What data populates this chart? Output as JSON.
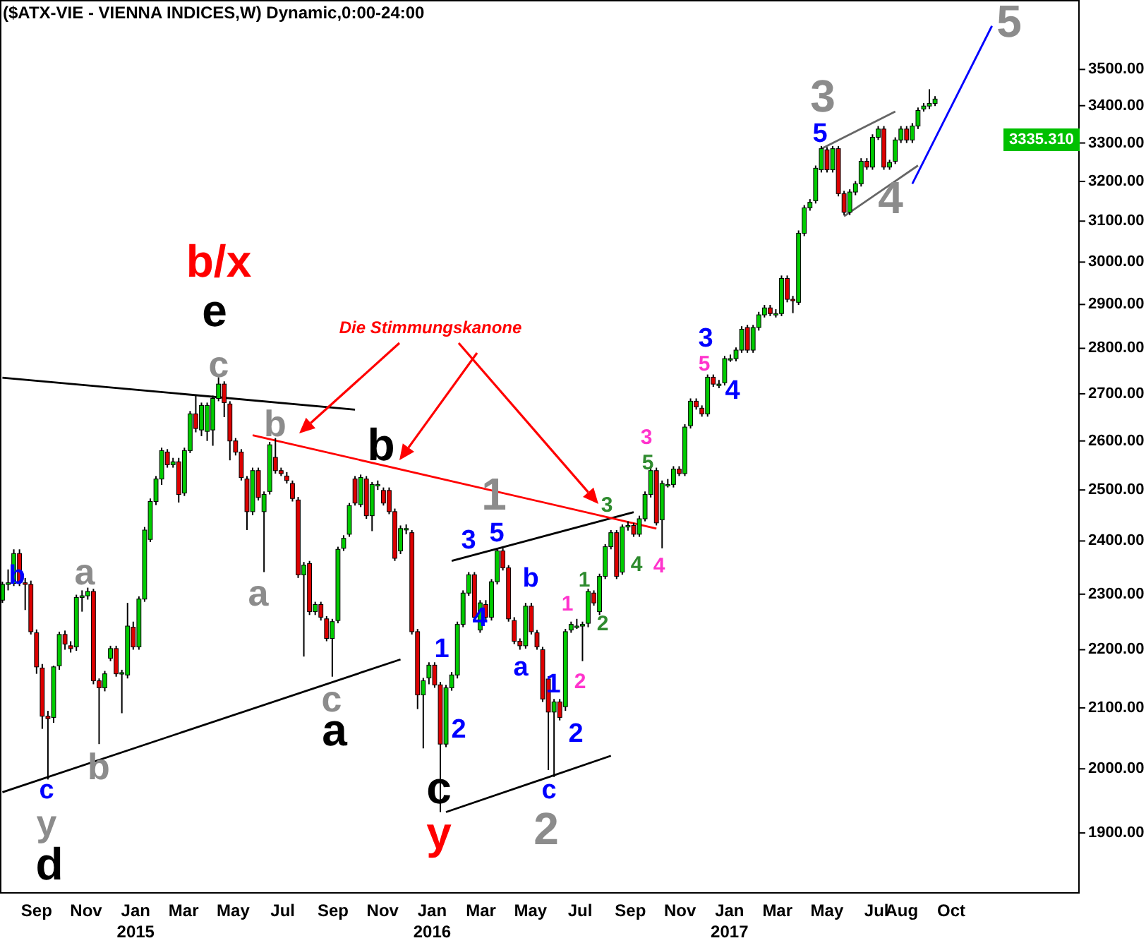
{
  "chart_data": {
    "type": "candlestick",
    "title": "($ATX-VIE - VIENNA INDICES,W) Dynamic,0:00-24:00",
    "log": true,
    "xlim": [
      "2014-07-18",
      "2018-03-08"
    ],
    "ylim": [
      1810,
      3700
    ],
    "xticks": [
      {
        "value": "2014-09-01",
        "label": "Sep"
      },
      {
        "value": "2014-11-01",
        "label": "Nov"
      },
      {
        "value": "2015-01-01",
        "label": "Jan\n2015"
      },
      {
        "value": "2015-03-01",
        "label": "Mar"
      },
      {
        "value": "2015-05-01",
        "label": "May"
      },
      {
        "value": "2015-07-01",
        "label": "Jul"
      },
      {
        "value": "2015-09-01",
        "label": "Sep"
      },
      {
        "value": "2015-11-01",
        "label": "Nov"
      },
      {
        "value": "2016-01-01",
        "label": "Jan\n2016"
      },
      {
        "value": "2016-03-01",
        "label": "Mar"
      },
      {
        "value": "2016-05-01",
        "label": "May"
      },
      {
        "value": "2016-07-01",
        "label": "Jul"
      },
      {
        "value": "2016-09-01",
        "label": "Sep"
      },
      {
        "value": "2016-11-01",
        "label": "Nov"
      },
      {
        "value": "2017-01-01",
        "label": "Jan\n2017"
      },
      {
        "value": "2017-03-01",
        "label": "Mar"
      },
      {
        "value": "2017-05-01",
        "label": "May"
      },
      {
        "value": "2017-07-01",
        "label": "Jul"
      },
      {
        "value": "2017-08-01",
        "label": "Aug"
      },
      {
        "value": "2017-10-01",
        "label": "Oct"
      }
    ],
    "yticks": [
      {
        "value": 1900,
        "label": "1900.00"
      },
      {
        "value": 2000,
        "label": "2000.00"
      },
      {
        "value": 2100,
        "label": "2100.00"
      },
      {
        "value": 2200,
        "label": "2200.00"
      },
      {
        "value": 2300,
        "label": "2300.00"
      },
      {
        "value": 2400,
        "label": "2400.00"
      },
      {
        "value": 2500,
        "label": "2500.00"
      },
      {
        "value": 2600,
        "label": "2600.00"
      },
      {
        "value": 2700,
        "label": "2700.00"
      },
      {
        "value": 2800,
        "label": "2800.00"
      },
      {
        "value": 2900,
        "label": "2900.00"
      },
      {
        "value": 3000,
        "label": "3000.00"
      },
      {
        "value": 3100,
        "label": "3100.00"
      },
      {
        "value": 3200,
        "label": "3200.00"
      },
      {
        "value": 3300,
        "label": "3300.00"
      },
      {
        "value": 3400,
        "label": "3400.00"
      },
      {
        "value": 3500,
        "label": "3500.00"
      }
    ],
    "colors": [
      "#00cc00",
      "#00cc00",
      "#00cc00",
      "#dd0000",
      "#dd0000",
      "#dd0000",
      "#dd0000",
      "#dd0000",
      "#dd0000",
      "#00cc00",
      "#00cc00",
      "#dd0000",
      "#dd0000",
      "#00cc00",
      "#00cc00",
      "#00cc00",
      "#dd0000",
      "#dd0000",
      "#00cc00",
      "#00cc00",
      "#dd0000",
      "#00cc00",
      "#00cc00",
      "#dd0000",
      "#00cc00",
      "#00cc00",
      "#00cc00",
      "#00cc00",
      "#00cc00",
      "#dd0000",
      "#00cc00",
      "#dd0000",
      "#00cc00",
      "#00cc00",
      "#dd0000",
      "#00cc00",
      "#00cc00",
      "#00cc00",
      "#00cc00",
      "#dd0000",
      "#dd0000",
      "#dd0000",
      "#dd0000",
      "#dd0000",
      "#00cc00",
      "#dd0000",
      "#00cc00",
      "#00cc00",
      "#dd0000",
      "#dd0000",
      "#dd0000",
      "#dd0000",
      "#dd0000",
      "#00cc00",
      "#dd0000",
      "#00cc00",
      "#dd0000",
      "#dd0000",
      "#00cc00",
      "#00cc00",
      "#00cc00",
      "#00cc00",
      "#dd0000",
      "#00cc00",
      "#dd0000",
      "#00cc00",
      "#00cc00",
      "#dd0000",
      "#dd0000",
      "#dd0000",
      "#00cc00",
      "#00cc00",
      "#dd0000",
      "#dd0000",
      "#00cc00",
      "#00cc00",
      "#dd0000",
      "#dd0000",
      "#00cc00",
      "#00cc00",
      "#00cc00",
      "#00cc00",
      "#00cc00",
      "#dd0000",
      "#00cc00",
      "#dd0000",
      "#00cc00",
      "#00cc00",
      "#dd0000",
      "#dd0000",
      "#dd0000",
      "#dd0000",
      "#00cc00",
      "#dd0000",
      "#dd0000",
      "#dd0000",
      "#dd0000",
      "#00cc00",
      "#dd0000",
      "#00cc00",
      "#00cc00",
      "#00cc00",
      "#00cc00",
      "#00cc00",
      "#dd0000",
      "#00cc00",
      "#00cc00",
      "#00cc00",
      "#dd0000",
      "#00cc00",
      "#00cc00",
      "#dd0000",
      "#00cc00",
      "#00cc00",
      "#00cc00",
      "#dd0000",
      "#00cc00",
      "#00cc00",
      "#00cc00",
      "#dd0000",
      "#00cc00",
      "#00cc00",
      "#dd0000",
      "#dd0000",
      "#00cc00",
      "#dd0000",
      "#00cc00",
      "#00cc00",
      "#00cc00",
      "#00cc00",
      "#00cc00",
      "#dd0000",
      "#00cc00",
      "#00cc00",
      "#00cc00",
      "#dd0000",
      "#00cc00",
      "#00cc00",
      "#dd0000",
      "#dd0000",
      "#00cc00",
      "#00cc00",
      "#00cc00",
      "#00cc00",
      "#00cc00",
      "#dd0000",
      "#00cc00",
      "#dd0000",
      "#dd0000",
      "#00cc00",
      "#00cc00",
      "#00cc00",
      "#dd0000",
      "#00cc00",
      "#00cc00",
      "#dd0000",
      "#00cc00",
      "#00cc00",
      "#00cc00",
      "#dd0000",
      "#00cc00",
      "#00cc00",
      "#00cc00",
      "#00cc00",
      "#00cc00"
    ],
    "x": [
      "2014-07-21",
      "2014-07-28",
      "2014-08-04",
      "2014-08-11",
      "2014-08-18",
      "2014-08-25",
      "2014-09-01",
      "2014-09-08",
      "2014-09-15",
      "2014-09-22",
      "2014-09-29",
      "2014-10-06",
      "2014-10-13",
      "2014-10-20",
      "2014-10-27",
      "2014-11-03",
      "2014-11-10",
      "2014-11-17",
      "2014-11-24",
      "2014-12-01",
      "2014-12-08",
      "2014-12-15",
      "2014-12-22",
      "2014-12-29",
      "2015-01-05",
      "2015-01-12",
      "2015-01-19",
      "2015-01-26",
      "2015-02-02",
      "2015-02-09",
      "2015-02-16",
      "2015-02-23",
      "2015-03-02",
      "2015-03-09",
      "2015-03-16",
      "2015-03-23",
      "2015-03-30",
      "2015-04-06",
      "2015-04-13",
      "2015-04-20",
      "2015-04-27",
      "2015-05-04",
      "2015-05-11",
      "2015-05-18",
      "2015-05-25",
      "2015-06-01",
      "2015-06-08",
      "2015-06-15",
      "2015-06-22",
      "2015-06-29",
      "2015-07-06",
      "2015-07-13",
      "2015-07-20",
      "2015-07-27",
      "2015-08-03",
      "2015-08-10",
      "2015-08-17",
      "2015-08-24",
      "2015-08-31",
      "2015-09-07",
      "2015-09-14",
      "2015-09-21",
      "2015-09-28",
      "2015-10-05",
      "2015-10-12",
      "2015-10-19",
      "2015-10-26",
      "2015-11-02",
      "2015-11-09",
      "2015-11-16",
      "2015-11-23",
      "2015-11-30",
      "2015-12-07",
      "2015-12-14",
      "2015-12-21",
      "2015-12-28",
      "2016-01-04",
      "2016-01-11",
      "2016-01-18",
      "2016-01-25",
      "2016-02-01",
      "2016-02-08",
      "2016-02-15",
      "2016-02-22",
      "2016-02-29",
      "2016-03-07",
      "2016-03-14",
      "2016-03-21",
      "2016-03-28",
      "2016-04-04",
      "2016-04-11",
      "2016-04-18",
      "2016-04-25",
      "2016-05-02",
      "2016-05-09",
      "2016-05-16",
      "2016-05-23",
      "2016-05-30",
      "2016-06-06",
      "2016-06-13",
      "2016-06-20",
      "2016-06-27",
      "2016-07-04",
      "2016-07-11",
      "2016-07-18",
      "2016-07-25",
      "2016-08-01",
      "2016-08-08",
      "2016-08-15",
      "2016-08-22",
      "2016-08-29",
      "2016-09-05",
      "2016-09-12",
      "2016-09-19",
      "2016-09-26",
      "2016-10-03",
      "2016-10-10",
      "2016-10-17",
      "2016-10-24",
      "2016-10-31",
      "2016-11-07",
      "2016-11-14",
      "2016-11-21",
      "2016-11-28",
      "2016-12-05",
      "2016-12-12",
      "2016-12-19",
      "2016-12-26",
      "2017-01-02",
      "2017-01-09",
      "2017-01-16",
      "2017-01-23",
      "2017-01-30",
      "2017-02-06",
      "2017-02-13",
      "2017-02-20",
      "2017-02-27",
      "2017-03-06",
      "2017-03-13",
      "2017-03-20",
      "2017-03-27",
      "2017-04-03",
      "2017-04-10",
      "2017-04-17",
      "2017-04-24",
      "2017-05-01",
      "2017-05-08",
      "2017-05-15",
      "2017-05-22",
      "2017-05-29",
      "2017-06-05",
      "2017-06-12",
      "2017-06-19",
      "2017-06-26",
      "2017-07-03",
      "2017-07-10",
      "2017-07-17",
      "2017-07-24",
      "2017-07-31",
      "2017-08-07",
      "2017-08-14",
      "2017-08-21",
      "2017-08-28",
      "2017-09-04",
      "2017-09-11"
    ],
    "ohlc": [
      [
        2289,
        2323,
        2284,
        2318
      ],
      [
        2318,
        2346,
        2307,
        2321
      ],
      [
        2320,
        2384,
        2315,
        2376
      ],
      [
        2376,
        2384,
        2315,
        2323
      ],
      [
        2321,
        2330,
        2271,
        2318
      ],
      [
        2318,
        2325,
        2227,
        2232
      ],
      [
        2230,
        2236,
        2158,
        2170
      ],
      [
        2168,
        2175,
        2065,
        2086
      ],
      [
        2086,
        2095,
        1983,
        2082
      ],
      [
        2084,
        2172,
        2075,
        2170
      ],
      [
        2172,
        2232,
        2165,
        2227
      ],
      [
        2227,
        2234,
        2200,
        2210
      ],
      [
        2207,
        2215,
        2195,
        2202
      ],
      [
        2205,
        2299,
        2198,
        2294
      ],
      [
        2294,
        2307,
        2268,
        2297
      ],
      [
        2297,
        2312,
        2290,
        2305
      ],
      [
        2305,
        2310,
        2140,
        2146
      ],
      [
        2146,
        2150,
        2040,
        2134
      ],
      [
        2134,
        2163,
        2128,
        2158
      ],
      [
        2185,
        2207,
        2180,
        2202
      ],
      [
        2202,
        2207,
        2153,
        2158
      ],
      [
        2158,
        2165,
        2091,
        2160
      ],
      [
        2156,
        2284,
        2150,
        2242
      ],
      [
        2240,
        2250,
        2200,
        2205
      ],
      [
        2205,
        2296,
        2200,
        2291
      ],
      [
        2291,
        2427,
        2286,
        2421
      ],
      [
        2403,
        2483,
        2398,
        2477
      ],
      [
        2477,
        2528,
        2470,
        2522
      ],
      [
        2522,
        2586,
        2510,
        2580
      ],
      [
        2577,
        2583,
        2545,
        2551
      ],
      [
        2551,
        2565,
        2545,
        2557
      ],
      [
        2557,
        2565,
        2475,
        2491
      ],
      [
        2494,
        2586,
        2488,
        2580
      ],
      [
        2580,
        2663,
        2575,
        2657
      ],
      [
        2657,
        2696,
        2618,
        2626
      ],
      [
        2623,
        2681,
        2610,
        2675
      ],
      [
        2620,
        2681,
        2600,
        2675
      ],
      [
        2623,
        2696,
        2590,
        2690
      ],
      [
        2690,
        2736,
        2684,
        2721
      ],
      [
        2721,
        2727,
        2650,
        2681
      ],
      [
        2678,
        2684,
        2560,
        2600
      ],
      [
        2600,
        2606,
        2570,
        2577
      ],
      [
        2577,
        2583,
        2519,
        2525
      ],
      [
        2522,
        2528,
        2421,
        2457
      ],
      [
        2457,
        2545,
        2450,
        2539
      ],
      [
        2539,
        2545,
        2479,
        2485
      ],
      [
        2457,
        2497,
        2341,
        2491
      ],
      [
        2497,
        2598,
        2491,
        2592
      ],
      [
        2566,
        2606,
        2533,
        2539
      ],
      [
        2539,
        2545,
        2528,
        2533
      ],
      [
        2528,
        2536,
        2513,
        2519
      ],
      [
        2513,
        2519,
        2477,
        2483
      ],
      [
        2480,
        2486,
        2330,
        2336
      ],
      [
        2336,
        2360,
        2188,
        2354
      ],
      [
        2357,
        2362,
        2262,
        2268
      ],
      [
        2268,
        2286,
        2262,
        2281
      ],
      [
        2281,
        2286,
        2252,
        2258
      ],
      [
        2255,
        2260,
        2215,
        2220
      ],
      [
        2220,
        2255,
        2153,
        2250
      ],
      [
        2252,
        2389,
        2247,
        2384
      ],
      [
        2386,
        2411,
        2381,
        2405
      ],
      [
        2413,
        2474,
        2408,
        2469
      ],
      [
        2522,
        2528,
        2469,
        2474
      ],
      [
        2471,
        2531,
        2466,
        2525
      ],
      [
        2522,
        2528,
        2443,
        2449
      ],
      [
        2449,
        2516,
        2419,
        2511
      ],
      [
        2511,
        2519,
        2500,
        2511
      ],
      [
        2499,
        2505,
        2469,
        2474
      ],
      [
        2499,
        2505,
        2452,
        2457
      ],
      [
        2457,
        2463,
        2362,
        2367
      ],
      [
        2381,
        2430,
        2375,
        2424
      ],
      [
        2424,
        2432,
        2413,
        2424
      ],
      [
        2416,
        2421,
        2227,
        2232
      ],
      [
        2232,
        2237,
        2098,
        2122
      ],
      [
        2122,
        2151,
        2033,
        2146
      ],
      [
        2151,
        2178,
        2140,
        2173
      ],
      [
        2173,
        2178,
        2134,
        2139
      ],
      [
        2139,
        2144,
        1932,
        2040
      ],
      [
        2040,
        2139,
        2035,
        2134
      ],
      [
        2134,
        2161,
        2129,
        2156
      ],
      [
        2156,
        2250,
        2150,
        2245
      ],
      [
        2245,
        2307,
        2240,
        2302
      ],
      [
        2302,
        2341,
        2297,
        2336
      ],
      [
        2336,
        2341,
        2252,
        2258
      ],
      [
        2235,
        2289,
        2230,
        2284
      ],
      [
        2281,
        2289,
        2252,
        2258
      ],
      [
        2258,
        2328,
        2252,
        2323
      ],
      [
        2323,
        2386,
        2318,
        2381
      ],
      [
        2381,
        2386,
        2344,
        2349
      ],
      [
        2349,
        2354,
        2250,
        2255
      ],
      [
        2252,
        2258,
        2210,
        2215
      ],
      [
        2215,
        2220,
        2200,
        2207
      ],
      [
        2207,
        2284,
        2202,
        2278
      ],
      [
        2278,
        2284,
        2227,
        2232
      ],
      [
        2230,
        2235,
        2200,
        2205
      ],
      [
        2200,
        2205,
        2110,
        2115
      ],
      [
        2149,
        2154,
        1998,
        2093
      ],
      [
        2093,
        2115,
        1987,
        2110
      ],
      [
        2110,
        2115,
        2079,
        2084
      ],
      [
        2102,
        2237,
        2095,
        2232
      ],
      [
        2235,
        2250,
        2230,
        2245
      ],
      [
        2242,
        2255,
        2237,
        2242
      ],
      [
        2242,
        2250,
        2180,
        2245
      ],
      [
        2247,
        2310,
        2240,
        2305
      ],
      [
        2302,
        2307,
        2279,
        2284
      ],
      [
        2268,
        2338,
        2262,
        2333
      ],
      [
        2333,
        2394,
        2328,
        2389
      ],
      [
        2389,
        2421,
        2384,
        2416
      ],
      [
        2416,
        2421,
        2328,
        2333
      ],
      [
        2341,
        2432,
        2336,
        2427
      ],
      [
        2427,
        2438,
        2420,
        2430
      ],
      [
        2430,
        2435,
        2408,
        2413
      ],
      [
        2413,
        2449,
        2408,
        2443
      ],
      [
        2443,
        2497,
        2438,
        2491
      ],
      [
        2491,
        2545,
        2485,
        2539
      ],
      [
        2539,
        2545,
        2430,
        2435
      ],
      [
        2441,
        2519,
        2386,
        2513
      ],
      [
        2511,
        2522,
        2505,
        2511
      ],
      [
        2511,
        2548,
        2505,
        2542
      ],
      [
        2542,
        2548,
        2528,
        2533
      ],
      [
        2533,
        2635,
        2528,
        2629
      ],
      [
        2632,
        2690,
        2626,
        2684
      ],
      [
        2684,
        2690,
        2666,
        2672
      ],
      [
        2669,
        2675,
        2651,
        2657
      ],
      [
        2657,
        2742,
        2651,
        2736
      ],
      [
        2736,
        2742,
        2715,
        2721
      ],
      [
        2721,
        2730,
        2712,
        2721
      ],
      [
        2724,
        2783,
        2718,
        2777
      ],
      [
        2777,
        2786,
        2770,
        2777
      ],
      [
        2777,
        2802,
        2771,
        2796
      ],
      [
        2796,
        2850,
        2790,
        2843
      ],
      [
        2847,
        2853,
        2790,
        2796
      ],
      [
        2796,
        2853,
        2790,
        2847
      ],
      [
        2847,
        2883,
        2840,
        2876
      ],
      [
        2876,
        2899,
        2870,
        2892
      ],
      [
        2892,
        2899,
        2873,
        2879
      ],
      [
        2879,
        2889,
        2870,
        2879
      ],
      [
        2879,
        2968,
        2873,
        2961
      ],
      [
        2961,
        2968,
        2905,
        2912
      ],
      [
        2912,
        2920,
        2880,
        2909
      ],
      [
        2905,
        3077,
        2899,
        3070
      ],
      [
        3070,
        3140,
        3063,
        3133
      ],
      [
        3133,
        3155,
        3126,
        3147
      ],
      [
        3151,
        3241,
        3144,
        3234
      ],
      [
        3230,
        3292,
        3223,
        3285
      ],
      [
        3282,
        3289,
        3223,
        3230
      ],
      [
        3230,
        3292,
        3223,
        3285
      ],
      [
        3285,
        3292,
        3162,
        3169
      ],
      [
        3169,
        3176,
        3115,
        3122
      ],
      [
        3122,
        3180,
        3115,
        3173
      ],
      [
        3173,
        3201,
        3165,
        3194
      ],
      [
        3194,
        3260,
        3187,
        3252
      ],
      [
        3252,
        3260,
        3230,
        3237
      ],
      [
        3237,
        3323,
        3230,
        3315
      ],
      [
        3315,
        3345,
        3308,
        3337
      ],
      [
        3337,
        3345,
        3230,
        3237
      ],
      [
        3237,
        3256,
        3230,
        3249
      ],
      [
        3252,
        3315,
        3245,
        3308
      ],
      [
        3308,
        3345,
        3300,
        3337
      ],
      [
        3337,
        3345,
        3300,
        3308
      ],
      [
        3308,
        3353,
        3300,
        3345
      ],
      [
        3345,
        3395,
        3337,
        3387
      ],
      [
        3391,
        3407,
        3384,
        3399
      ],
      [
        3399,
        3445,
        3391,
        3406
      ],
      [
        3406,
        3426,
        3399,
        3418
      ]
    ],
    "series": [
      {
        "type": "line",
        "color": "#000000",
        "x": [
          "2014-07-21",
          "2015-09-28"
        ],
        "values": [
          2735,
          2666
        ]
      },
      {
        "type": "line",
        "color": "#000000",
        "x": [
          "2014-07-21",
          "2015-11-23"
        ],
        "values": [
          1963,
          2183
        ]
      },
      {
        "type": "line",
        "color": "#000000",
        "x": [
          "2016-01-25",
          "2016-09-05"
        ],
        "values": [
          2362,
          2456
        ]
      },
      {
        "type": "line",
        "color": "#000000",
        "x": [
          "2016-01-18",
          "2016-08-08"
        ],
        "values": [
          1932,
          2021
        ]
      },
      {
        "type": "line",
        "color": "#ff0000",
        "x": [
          "2015-05-25",
          "2016-10-03"
        ],
        "values": [
          2612,
          2424
        ]
      },
      {
        "type": "line",
        "color": "#666666",
        "x": [
          "2017-04-24",
          "2017-07-24"
        ],
        "values": [
          3285,
          3384
        ]
      },
      {
        "type": "line",
        "color": "#666666",
        "x": [
          "2017-05-22",
          "2017-08-21"
        ],
        "values": [
          3112,
          3241
        ]
      },
      {
        "type": "line",
        "color": "#0000ff",
        "x": [
          "2017-08-14",
          "2017-11-20"
        ],
        "values": [
          3194,
          3624
        ]
      }
    ],
    "annotations": [
      "b",
      "a",
      "b",
      "c",
      "y",
      "d",
      "b/x",
      "e",
      "c",
      "b",
      "a",
      "c",
      "a",
      "b",
      "Die Stimmungskanone",
      "1",
      "3",
      "5",
      "b",
      "4",
      "a",
      "1",
      "2",
      "1",
      "2",
      "c",
      "2",
      "c",
      "y",
      "1",
      "2",
      "1",
      "2",
      "3",
      "3",
      "5",
      "4",
      "4",
      "3",
      "5",
      "4",
      "3",
      "5",
      "4",
      "5",
      "3335.310"
    ]
  }
}
